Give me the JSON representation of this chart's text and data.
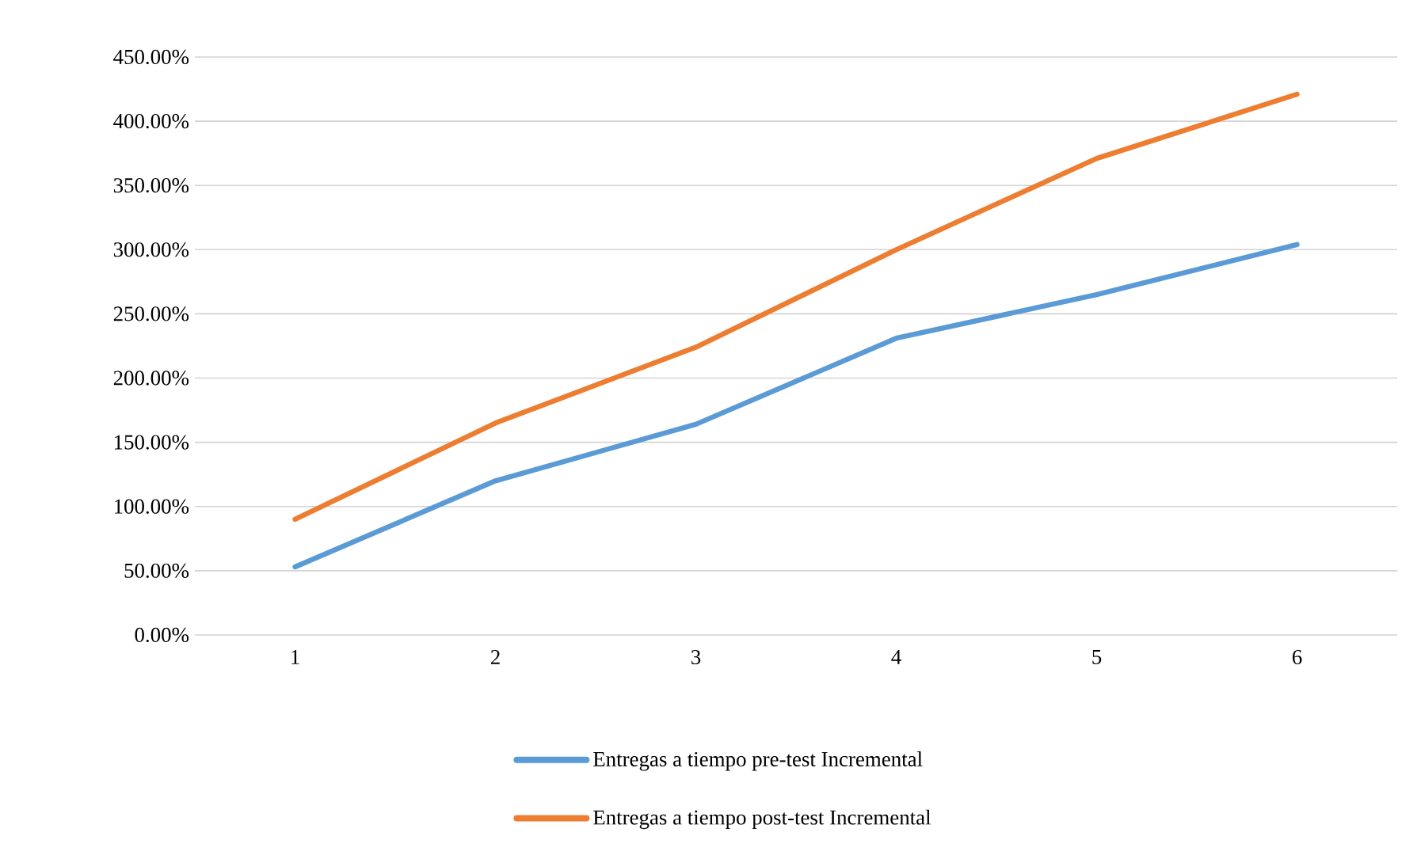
{
  "chart_data": {
    "type": "line",
    "categories": [
      "1",
      "2",
      "3",
      "4",
      "5",
      "6"
    ],
    "series": [
      {
        "name": "Entregas a tiempo pre-test Incremental",
        "color": "#5b9bd5",
        "values": [
          53,
          120,
          164,
          231,
          265,
          304
        ]
      },
      {
        "name": "Entregas a tiempo post-test Incremental",
        "color": "#ed7d31",
        "values": [
          90,
          165,
          224,
          300,
          371,
          421
        ]
      }
    ],
    "ylim": [
      0,
      450
    ],
    "yticks": [
      {
        "value": 0,
        "label": "0.00%"
      },
      {
        "value": 50,
        "label": "50.00%"
      },
      {
        "value": 100,
        "label": "100.00%"
      },
      {
        "value": 150,
        "label": "150.00%"
      },
      {
        "value": 200,
        "label": "200.00%"
      },
      {
        "value": 250,
        "label": "250.00%"
      },
      {
        "value": 300,
        "label": "300.00%"
      },
      {
        "value": 350,
        "label": "350.00%"
      },
      {
        "value": 400,
        "label": "400.00%"
      },
      {
        "value": 450,
        "label": "450.00%"
      }
    ],
    "grid": "y",
    "legend": "bottom",
    "marker": "none",
    "line_style": "solid"
  }
}
